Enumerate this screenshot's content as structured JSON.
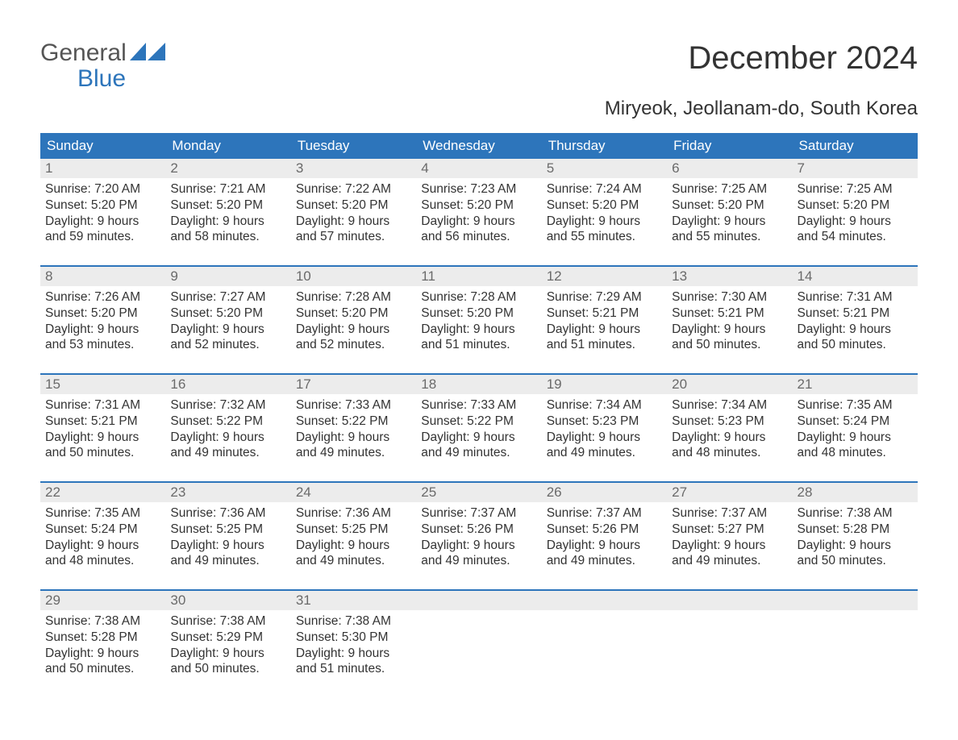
{
  "logo": {
    "top": "General",
    "bottom": "Blue",
    "icon_color": "#2d75bb"
  },
  "title": "December 2024",
  "subtitle": "Miryeok, Jeollanam-do, South Korea",
  "header_bg": "#2d75bb",
  "header_fg": "#ffffff",
  "daynum_bg": "#ececec",
  "daynum_fg": "#6a6a6a",
  "text_color": "#333333",
  "weekdays": [
    "Sunday",
    "Monday",
    "Tuesday",
    "Wednesday",
    "Thursday",
    "Friday",
    "Saturday"
  ],
  "weeks": [
    [
      {
        "n": "1",
        "sr": "Sunrise: 7:20 AM",
        "ss": "Sunset: 5:20 PM",
        "d1": "Daylight: 9 hours",
        "d2": "and 59 minutes."
      },
      {
        "n": "2",
        "sr": "Sunrise: 7:21 AM",
        "ss": "Sunset: 5:20 PM",
        "d1": "Daylight: 9 hours",
        "d2": "and 58 minutes."
      },
      {
        "n": "3",
        "sr": "Sunrise: 7:22 AM",
        "ss": "Sunset: 5:20 PM",
        "d1": "Daylight: 9 hours",
        "d2": "and 57 minutes."
      },
      {
        "n": "4",
        "sr": "Sunrise: 7:23 AM",
        "ss": "Sunset: 5:20 PM",
        "d1": "Daylight: 9 hours",
        "d2": "and 56 minutes."
      },
      {
        "n": "5",
        "sr": "Sunrise: 7:24 AM",
        "ss": "Sunset: 5:20 PM",
        "d1": "Daylight: 9 hours",
        "d2": "and 55 minutes."
      },
      {
        "n": "6",
        "sr": "Sunrise: 7:25 AM",
        "ss": "Sunset: 5:20 PM",
        "d1": "Daylight: 9 hours",
        "d2": "and 55 minutes."
      },
      {
        "n": "7",
        "sr": "Sunrise: 7:25 AM",
        "ss": "Sunset: 5:20 PM",
        "d1": "Daylight: 9 hours",
        "d2": "and 54 minutes."
      }
    ],
    [
      {
        "n": "8",
        "sr": "Sunrise: 7:26 AM",
        "ss": "Sunset: 5:20 PM",
        "d1": "Daylight: 9 hours",
        "d2": "and 53 minutes."
      },
      {
        "n": "9",
        "sr": "Sunrise: 7:27 AM",
        "ss": "Sunset: 5:20 PM",
        "d1": "Daylight: 9 hours",
        "d2": "and 52 minutes."
      },
      {
        "n": "10",
        "sr": "Sunrise: 7:28 AM",
        "ss": "Sunset: 5:20 PM",
        "d1": "Daylight: 9 hours",
        "d2": "and 52 minutes."
      },
      {
        "n": "11",
        "sr": "Sunrise: 7:28 AM",
        "ss": "Sunset: 5:20 PM",
        "d1": "Daylight: 9 hours",
        "d2": "and 51 minutes."
      },
      {
        "n": "12",
        "sr": "Sunrise: 7:29 AM",
        "ss": "Sunset: 5:21 PM",
        "d1": "Daylight: 9 hours",
        "d2": "and 51 minutes."
      },
      {
        "n": "13",
        "sr": "Sunrise: 7:30 AM",
        "ss": "Sunset: 5:21 PM",
        "d1": "Daylight: 9 hours",
        "d2": "and 50 minutes."
      },
      {
        "n": "14",
        "sr": "Sunrise: 7:31 AM",
        "ss": "Sunset: 5:21 PM",
        "d1": "Daylight: 9 hours",
        "d2": "and 50 minutes."
      }
    ],
    [
      {
        "n": "15",
        "sr": "Sunrise: 7:31 AM",
        "ss": "Sunset: 5:21 PM",
        "d1": "Daylight: 9 hours",
        "d2": "and 50 minutes."
      },
      {
        "n": "16",
        "sr": "Sunrise: 7:32 AM",
        "ss": "Sunset: 5:22 PM",
        "d1": "Daylight: 9 hours",
        "d2": "and 49 minutes."
      },
      {
        "n": "17",
        "sr": "Sunrise: 7:33 AM",
        "ss": "Sunset: 5:22 PM",
        "d1": "Daylight: 9 hours",
        "d2": "and 49 minutes."
      },
      {
        "n": "18",
        "sr": "Sunrise: 7:33 AM",
        "ss": "Sunset: 5:22 PM",
        "d1": "Daylight: 9 hours",
        "d2": "and 49 minutes."
      },
      {
        "n": "19",
        "sr": "Sunrise: 7:34 AM",
        "ss": "Sunset: 5:23 PM",
        "d1": "Daylight: 9 hours",
        "d2": "and 49 minutes."
      },
      {
        "n": "20",
        "sr": "Sunrise: 7:34 AM",
        "ss": "Sunset: 5:23 PM",
        "d1": "Daylight: 9 hours",
        "d2": "and 48 minutes."
      },
      {
        "n": "21",
        "sr": "Sunrise: 7:35 AM",
        "ss": "Sunset: 5:24 PM",
        "d1": "Daylight: 9 hours",
        "d2": "and 48 minutes."
      }
    ],
    [
      {
        "n": "22",
        "sr": "Sunrise: 7:35 AM",
        "ss": "Sunset: 5:24 PM",
        "d1": "Daylight: 9 hours",
        "d2": "and 48 minutes."
      },
      {
        "n": "23",
        "sr": "Sunrise: 7:36 AM",
        "ss": "Sunset: 5:25 PM",
        "d1": "Daylight: 9 hours",
        "d2": "and 49 minutes."
      },
      {
        "n": "24",
        "sr": "Sunrise: 7:36 AM",
        "ss": "Sunset: 5:25 PM",
        "d1": "Daylight: 9 hours",
        "d2": "and 49 minutes."
      },
      {
        "n": "25",
        "sr": "Sunrise: 7:37 AM",
        "ss": "Sunset: 5:26 PM",
        "d1": "Daylight: 9 hours",
        "d2": "and 49 minutes."
      },
      {
        "n": "26",
        "sr": "Sunrise: 7:37 AM",
        "ss": "Sunset: 5:26 PM",
        "d1": "Daylight: 9 hours",
        "d2": "and 49 minutes."
      },
      {
        "n": "27",
        "sr": "Sunrise: 7:37 AM",
        "ss": "Sunset: 5:27 PM",
        "d1": "Daylight: 9 hours",
        "d2": "and 49 minutes."
      },
      {
        "n": "28",
        "sr": "Sunrise: 7:38 AM",
        "ss": "Sunset: 5:28 PM",
        "d1": "Daylight: 9 hours",
        "d2": "and 50 minutes."
      }
    ],
    [
      {
        "n": "29",
        "sr": "Sunrise: 7:38 AM",
        "ss": "Sunset: 5:28 PM",
        "d1": "Daylight: 9 hours",
        "d2": "and 50 minutes."
      },
      {
        "n": "30",
        "sr": "Sunrise: 7:38 AM",
        "ss": "Sunset: 5:29 PM",
        "d1": "Daylight: 9 hours",
        "d2": "and 50 minutes."
      },
      {
        "n": "31",
        "sr": "Sunrise: 7:38 AM",
        "ss": "Sunset: 5:30 PM",
        "d1": "Daylight: 9 hours",
        "d2": "and 51 minutes."
      },
      {
        "empty": true
      },
      {
        "empty": true
      },
      {
        "empty": true
      },
      {
        "empty": true
      }
    ]
  ]
}
